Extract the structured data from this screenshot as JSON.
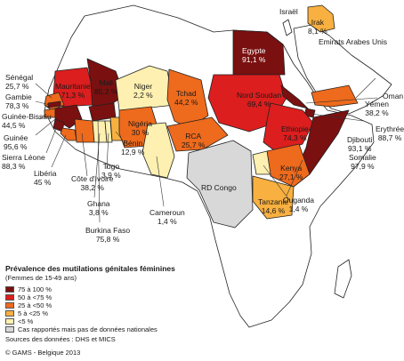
{
  "legend": {
    "title": "Prévalence des mutilations génitales féminines",
    "subtitle": "(Femmes de 15-49 ans)",
    "items": [
      {
        "label": "75 à 100 %",
        "color": "#7a1010"
      },
      {
        "label": "50 à <75 %",
        "color": "#dc1e1e"
      },
      {
        "label": "25 à <50 %",
        "color": "#ee6a1c"
      },
      {
        "label": "5 à <25 %",
        "color": "#f8b040"
      },
      {
        "label": "<5 %",
        "color": "#fdf0b0"
      },
      {
        "label": "Cas rapportés mais pas de données nationales",
        "color": "#d8d8d8"
      }
    ],
    "sources": "Sources des données : DHS et MICS"
  },
  "credit": "© GAMS - Belgique 2013",
  "labels": {
    "israel": "Israël",
    "emirats": "Emirats Arabes Unis",
    "oman": "Oman",
    "rdcongo": "RD Congo"
  },
  "countries": {
    "irak": {
      "name": "Irak",
      "value": "8,1 %",
      "color": "#f8b040"
    },
    "egypte": {
      "name": "Egypte",
      "value": "91,1 %",
      "color": "#7a1010"
    },
    "senegal": {
      "name": "Sénégal",
      "value": "25,7 %",
      "color": "#ee6a1c"
    },
    "gambie": {
      "name": "Gambie",
      "value": "78,3 %",
      "color": "#7a1010"
    },
    "guineebissau": {
      "name": "Guinée-Bissau",
      "value": "44,5 %",
      "color": "#ee6a1c"
    },
    "guinee": {
      "name": "Guinée",
      "value": "95,6 %",
      "color": "#7a1010"
    },
    "sierraleone": {
      "name": "Sierra Léone",
      "value": "88,3 %",
      "color": "#7a1010"
    },
    "liberia": {
      "name": "Libéria",
      "value": "45 %",
      "color": "#ee6a1c"
    },
    "cotedivoire": {
      "name": "Côte d'Ivoire",
      "value": "38,2 %",
      "color": "#ee6a1c"
    },
    "burkina": {
      "name": "Burkina Faso",
      "value": "75,8 %",
      "color": "#7a1010"
    },
    "mauritanie": {
      "name": "Mauritanie",
      "value": "71,3 %",
      "color": "#dc1e1e"
    },
    "mali": {
      "name": "Mali",
      "value": "85,2 %",
      "color": "#7a1010"
    },
    "niger": {
      "name": "Niger",
      "value": "2,2 %",
      "color": "#fdf0b0"
    },
    "nigeria": {
      "name": "Nigéria",
      "value": "30 %",
      "color": "#ee6a1c"
    },
    "benin": {
      "name": "Bénin",
      "value": "12,9 %",
      "color": "#f8b040"
    },
    "togo": {
      "name": "Togo",
      "value": "3,9 %",
      "color": "#fdf0b0"
    },
    "ghana": {
      "name": "Ghana",
      "value": "3,8 %",
      "color": "#fdf0b0"
    },
    "cameroun": {
      "name": "Cameroun",
      "value": "1,4 %",
      "color": "#fdf0b0"
    },
    "tchad": {
      "name": "Tchad",
      "value": "44,2 %",
      "color": "#ee6a1c"
    },
    "rca": {
      "name": "RCA",
      "value": "25,7 %",
      "color": "#ee6a1c"
    },
    "nordsoudan": {
      "name": "Nord Soudan",
      "value": "69,4 %",
      "color": "#dc1e1e"
    },
    "ethiopie": {
      "name": "Ethiopie",
      "value": "74,3 %",
      "color": "#dc1e1e"
    },
    "erythree": {
      "name": "Erythrée",
      "value": "88,7 %",
      "color": "#7a1010"
    },
    "djibouti": {
      "name": "Djibouti",
      "value": "93,1 %",
      "color": "#7a1010"
    },
    "somalie": {
      "name": "Somalie",
      "value": "97,9 %",
      "color": "#7a1010"
    },
    "yemen": {
      "name": "Yémen",
      "value": "38,2 %",
      "color": "#ee6a1c"
    },
    "kenya": {
      "name": "Kenya",
      "value": "27,1 %",
      "color": "#ee6a1c"
    },
    "ouganda": {
      "name": "Ouganda",
      "value": "1,4 %",
      "color": "#fdf0b0"
    },
    "tanzanie": {
      "name": "Tanzanie",
      "value": "14,6 %",
      "color": "#f8b040"
    }
  }
}
